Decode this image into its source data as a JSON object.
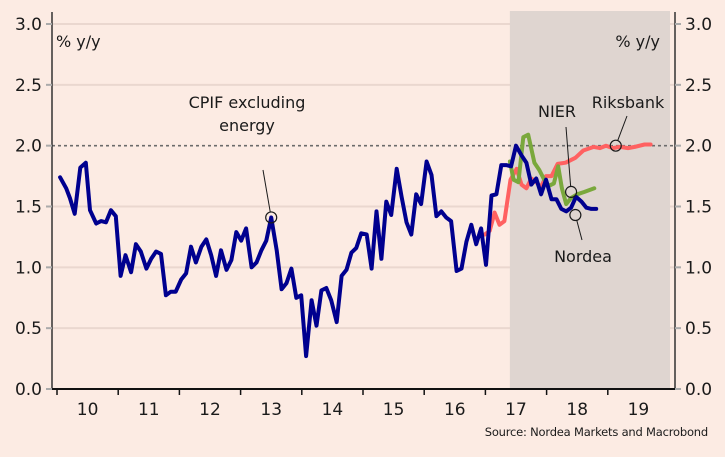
{
  "chart_data": {
    "type": "line",
    "title": "",
    "ylabel_left": "% y/y",
    "ylabel_right": "% y/y",
    "xlabel": "",
    "ylim": [
      0.0,
      3.0
    ],
    "yticks": [
      0.0,
      0.5,
      1.0,
      1.5,
      2.0,
      2.5,
      3.0
    ],
    "ytick_labels": [
      "0.0",
      "0.5",
      "1.0",
      "1.5",
      "2.0",
      "2.5",
      "3.0"
    ],
    "xlim": [
      2009.9,
      2019.15
    ],
    "xtick_labels": [
      "10",
      "11",
      "12",
      "13",
      "14",
      "15",
      "16",
      "17",
      "18",
      "19"
    ],
    "xtick_years": [
      2010,
      2011,
      2012,
      2013,
      2014,
      2015,
      2016,
      2017,
      2018,
      2019
    ],
    "forecast_shading": {
      "from": 2017.4,
      "to": 2019.9,
      "color": "#dfd5d0"
    },
    "reference_line": {
      "y": 2.0,
      "style": "dotted",
      "color": "#6b6b6b"
    },
    "grid": true,
    "colors": {
      "background": "#fcebe3",
      "grid": "#ead7cf",
      "axis": "#333333",
      "cpif": "#00008f",
      "nier": "#7aa83c",
      "riksbank": "#ff6161"
    },
    "series": [
      {
        "name": "CPIF excluding energy",
        "color": "#00008f",
        "x": [
          2010.05,
          2010.15,
          2010.21,
          2010.29,
          2010.38,
          2010.47,
          2010.54,
          2010.64,
          2010.72,
          2010.8,
          2010.88,
          2010.96,
          2011.04,
          2011.12,
          2011.21,
          2011.29,
          2011.37,
          2011.46,
          2011.54,
          2011.62,
          2011.7,
          2011.78,
          2011.86,
          2011.94,
          2012.03,
          2012.11,
          2012.19,
          2012.27,
          2012.36,
          2012.44,
          2012.52,
          2012.6,
          2012.68,
          2012.77,
          2012.85,
          2012.93,
          2013.01,
          2013.09,
          2013.18,
          2013.26,
          2013.34,
          2013.42,
          2013.5,
          2013.59,
          2013.67,
          2013.75,
          2013.83,
          2013.91,
          2013.99,
          2014.07,
          2014.16,
          2014.24,
          2014.32,
          2014.4,
          2014.48,
          2014.57,
          2014.65,
          2014.73,
          2014.81,
          2014.89,
          2014.97,
          2015.06,
          2015.14,
          2015.22,
          2015.3,
          2015.38,
          2015.46,
          2015.55,
          2015.63,
          2015.71,
          2015.79,
          2015.87,
          2015.95,
          2016.04,
          2016.12,
          2016.2,
          2016.28,
          2016.36,
          2016.44,
          2016.53,
          2016.61,
          2016.69,
          2016.77,
          2016.85,
          2016.93,
          2017.01,
          2017.1,
          2017.18,
          2017.26,
          2017.34,
          2017.42,
          2017.5,
          2017.59,
          2017.67,
          2017.75,
          2017.83,
          2017.91,
          2017.99,
          2018.08,
          2018.16,
          2018.24,
          2018.32,
          2018.4,
          2018.48,
          2018.57,
          2018.65,
          2018.73,
          2018.81
        ],
        "values": [
          1.74,
          1.65,
          1.57,
          1.44,
          1.82,
          1.86,
          1.47,
          1.36,
          1.38,
          1.37,
          1.47,
          1.42,
          0.93,
          1.1,
          0.96,
          1.19,
          1.13,
          0.99,
          1.07,
          1.13,
          1.11,
          0.77,
          0.8,
          0.8,
          0.9,
          0.95,
          1.17,
          1.04,
          1.17,
          1.23,
          1.1,
          0.93,
          1.14,
          0.98,
          1.06,
          1.29,
          1.22,
          1.32,
          1.0,
          1.04,
          1.14,
          1.22,
          1.41,
          1.14,
          0.82,
          0.87,
          0.99,
          0.75,
          0.77,
          0.27,
          0.73,
          0.52,
          0.81,
          0.83,
          0.73,
          0.55,
          0.93,
          0.98,
          1.12,
          1.16,
          1.28,
          1.27,
          0.99,
          1.46,
          1.07,
          1.54,
          1.43,
          1.81,
          1.58,
          1.37,
          1.27,
          1.6,
          1.52,
          1.87,
          1.76,
          1.42,
          1.46,
          1.41,
          1.38,
          0.97,
          0.99,
          1.21,
          1.35,
          1.19,
          1.32,
          1.02,
          1.59,
          1.6,
          1.84,
          1.84,
          1.83,
          2.0,
          1.92,
          1.86,
          1.68,
          1.73,
          1.6,
          1.72,
          1.56,
          1.56,
          1.48,
          1.46,
          1.49,
          1.58,
          1.54,
          1.49,
          1.48,
          1.48
        ]
      },
      {
        "name": "NIER",
        "color": "#7aa83c",
        "x": [
          2017.4,
          2017.46,
          2017.54,
          2017.62,
          2017.7,
          2017.8,
          2017.88,
          2017.96,
          2018.04,
          2018.12,
          2018.19,
          2018.25,
          2018.32,
          2018.4,
          2018.5,
          2018.62,
          2018.78
        ],
        "values": [
          1.87,
          1.72,
          1.7,
          2.07,
          2.09,
          1.86,
          1.8,
          1.72,
          1.67,
          1.69,
          1.83,
          1.65,
          1.52,
          1.57,
          1.6,
          1.62,
          1.65
        ]
      },
      {
        "name": "Riksbank",
        "color": "#ff6161",
        "x": [
          2016.99,
          2017.07,
          2017.15,
          2017.23,
          2017.31,
          2017.41,
          2017.51,
          2017.59,
          2017.67,
          2017.75,
          2017.83,
          2017.91,
          2017.99,
          2018.08,
          2018.18,
          2018.31,
          2018.47,
          2018.6,
          2018.77,
          2018.87,
          2018.97,
          2019.08,
          2019.2,
          2019.33,
          2019.44,
          2019.6,
          2019.7
        ],
        "values": [
          1.27,
          1.3,
          1.45,
          1.35,
          1.38,
          1.72,
          1.81,
          1.68,
          1.65,
          1.73,
          1.7,
          1.66,
          1.75,
          1.75,
          1.85,
          1.86,
          1.9,
          1.96,
          1.99,
          1.98,
          2.0,
          1.98,
          1.99,
          1.98,
          1.99,
          2.01,
          2.01
        ]
      }
    ],
    "annotations": [
      {
        "name": "cpif",
        "lines": [
          "CPIF excluding energy",
          ""
        ],
        "text_line1": "CPIF excluding",
        "text_line2": "energy",
        "point": {
          "x": 2013.5,
          "y": 1.41
        }
      },
      {
        "name": "nier",
        "text": "NIER",
        "point": {
          "x": 2018.4,
          "y": 1.62
        }
      },
      {
        "name": "riksbank",
        "text": "Riksbank",
        "point": {
          "x": 2019.13,
          "y": 2.0
        }
      },
      {
        "name": "nordea",
        "text": "Nordea",
        "point": {
          "x": 2018.47,
          "y": 1.43
        }
      }
    ]
  },
  "source": "Source: Nordea Markets and Macrobond"
}
